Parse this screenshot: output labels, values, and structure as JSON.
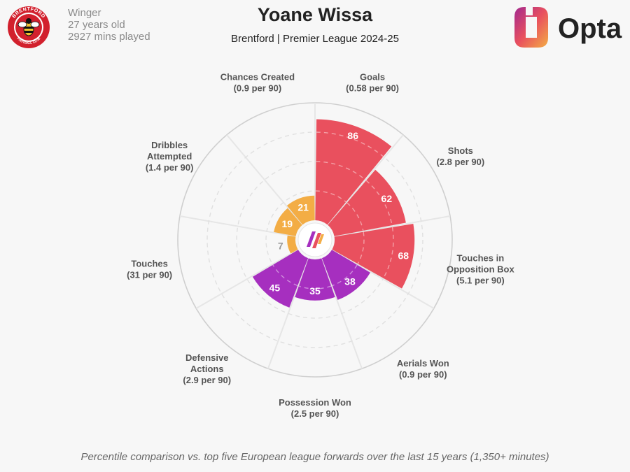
{
  "player": {
    "name": "Yoane Wissa",
    "position": "Winger",
    "age": "27 years old",
    "minutes": "2927 mins played",
    "team_competition": "Brentford | Premier League 2024-25"
  },
  "club_badge": {
    "text": "BRENTFORD FOOTBALL CLUB",
    "icon": "brentford-bee-badge"
  },
  "brand": {
    "name": "Opta"
  },
  "footnote": "Percentile comparison vs. top five European league forwards over the last 15 years (1,350+ minutes)",
  "colors": {
    "attacking": "#e9505e",
    "possession": "#a62fbf",
    "creative": "#f3ad45",
    "background": "#f7f7f7"
  },
  "chart_data": {
    "type": "radar",
    "scale": [
      0,
      100
    ],
    "series": [
      {
        "label": "Goals",
        "detail": "(0.58 per 90)",
        "value": 86,
        "group": "attacking"
      },
      {
        "label": "Shots",
        "detail": "(2.8 per 90)",
        "value": 62,
        "group": "attacking"
      },
      {
        "label": "Touches in Opposition Box",
        "detail": "(5.1 per 90)",
        "value": 68,
        "group": "attacking"
      },
      {
        "label": "Aerials Won",
        "detail": "(0.9 per 90)",
        "value": 38,
        "group": "possession"
      },
      {
        "label": "Possession Won",
        "detail": "(2.5 per 90)",
        "value": 35,
        "group": "possession"
      },
      {
        "label": "Defensive Actions",
        "detail": "(2.9 per 90)",
        "value": 45,
        "group": "possession"
      },
      {
        "label": "Touches",
        "detail": "(31 per 90)",
        "value": 7,
        "group": "creative"
      },
      {
        "label": "Dribbles Attempted",
        "detail": "(1.4 per 90)",
        "value": 19,
        "group": "creative"
      },
      {
        "label": "Chances Created",
        "detail": "(0.9 per 90)",
        "value": 21,
        "group": "creative"
      }
    ]
  }
}
